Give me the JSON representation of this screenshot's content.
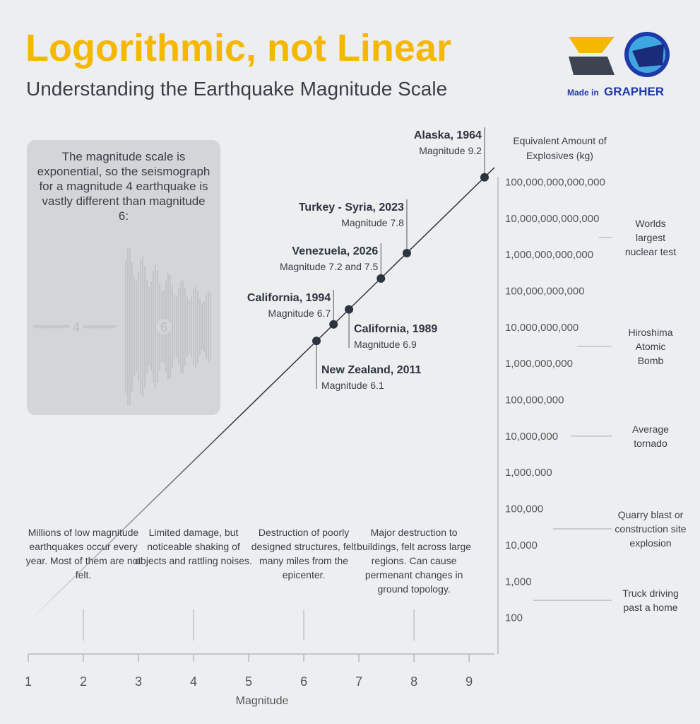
{
  "logo": {
    "made_in": "Made in",
    "brand": "GRAPHER"
  },
  "chart_data": {
    "type": "line",
    "title": "Logorithmic, not Linear",
    "subtitle": "Understanding the Earthquake Magnitude Scale",
    "x_label": "Magnitude",
    "y_label": "Equivalent Amount of Explosives (kg)",
    "log_y": true,
    "xlim": [
      1,
      9.46
    ],
    "xticks": [
      1,
      2,
      3,
      4,
      5,
      6,
      7,
      8,
      9
    ],
    "ylim": [
      10,
      250000000000000
    ],
    "yticks": [
      100,
      {
        "value": 1000,
        "label": "1,000"
      },
      {
        "value": 10000,
        "label": "10,000"
      },
      {
        "value": 100000,
        "label": "100,000"
      },
      {
        "value": 1000000,
        "label": "1,000,000"
      },
      {
        "value": 10000000,
        "label": "10,000,000"
      },
      {
        "value": 100000000,
        "label": "100,000,000"
      },
      {
        "value": 1000000000,
        "label": "1,000,000,000"
      },
      {
        "value": 10000000000,
        "label": "10,000,000,000"
      },
      {
        "value": 100000000000,
        "label": "100,000,000,000"
      },
      {
        "value": 1000000000000,
        "label": "1,000,000,000,000"
      },
      {
        "value": 10000000000000,
        "label": "10,000,000,000,000"
      },
      {
        "value": 100000000000000,
        "label": "100,000,000,000,000"
      }
    ],
    "line": {
      "color": "#2d3440",
      "x": [
        1,
        9.46
      ],
      "values": [
        76,
        250000000000000
      ]
    },
    "events": {
      "color": "#2d3440",
      "names": [
        "Alaska, 1964",
        "Turkey - Syria, 2023",
        "Venezuela, 2026",
        "California, 1994",
        "California, 1989",
        "New Zealand, 2011"
      ],
      "magnitude_labels": [
        "Magnitude 9.2",
        "Magnitude 7.8",
        "Magnitude 7.2 and 7.5",
        "Magnitude 6.7",
        "Magnitude 6.9",
        "Magnitude 6.1"
      ],
      "x": [
        9.28,
        7.87,
        7.4,
        6.54,
        6.82,
        6.23
      ],
      "values": [
        135000000000000,
        1100000000000,
        220000000000,
        12000000000,
        31000000000,
        4200000000
      ]
    },
    "references": {
      "labels": [
        "Worlds largest nuclear test",
        "Hiroshima Atomic Bomb",
        "Average tornado",
        "Quarry blast or construction site explosion",
        "Truck driving past a home"
      ],
      "values": [
        3000000000000,
        3000000000,
        10000000,
        28000,
        300
      ]
    },
    "descriptions": {
      "x": [
        2,
        4,
        6,
        8
      ],
      "texts": [
        "Millions of low magnitude earthquakes occur every year. Most of them are not felt.",
        "Limited damage, but noticeable shaking of objects and rattling noises.",
        "Destruction of poorly designed structures, felt many miles from the epicenter.",
        "Major destruction to buildings, felt across large regions. Can cause permenant changes in ground topology."
      ]
    },
    "inset": {
      "text": "The magnitude scale is exponential, so the seismograph for a magnitude 4 earthquake is vastly different than magnitude 6:",
      "labels": [
        "4",
        "6"
      ]
    }
  }
}
